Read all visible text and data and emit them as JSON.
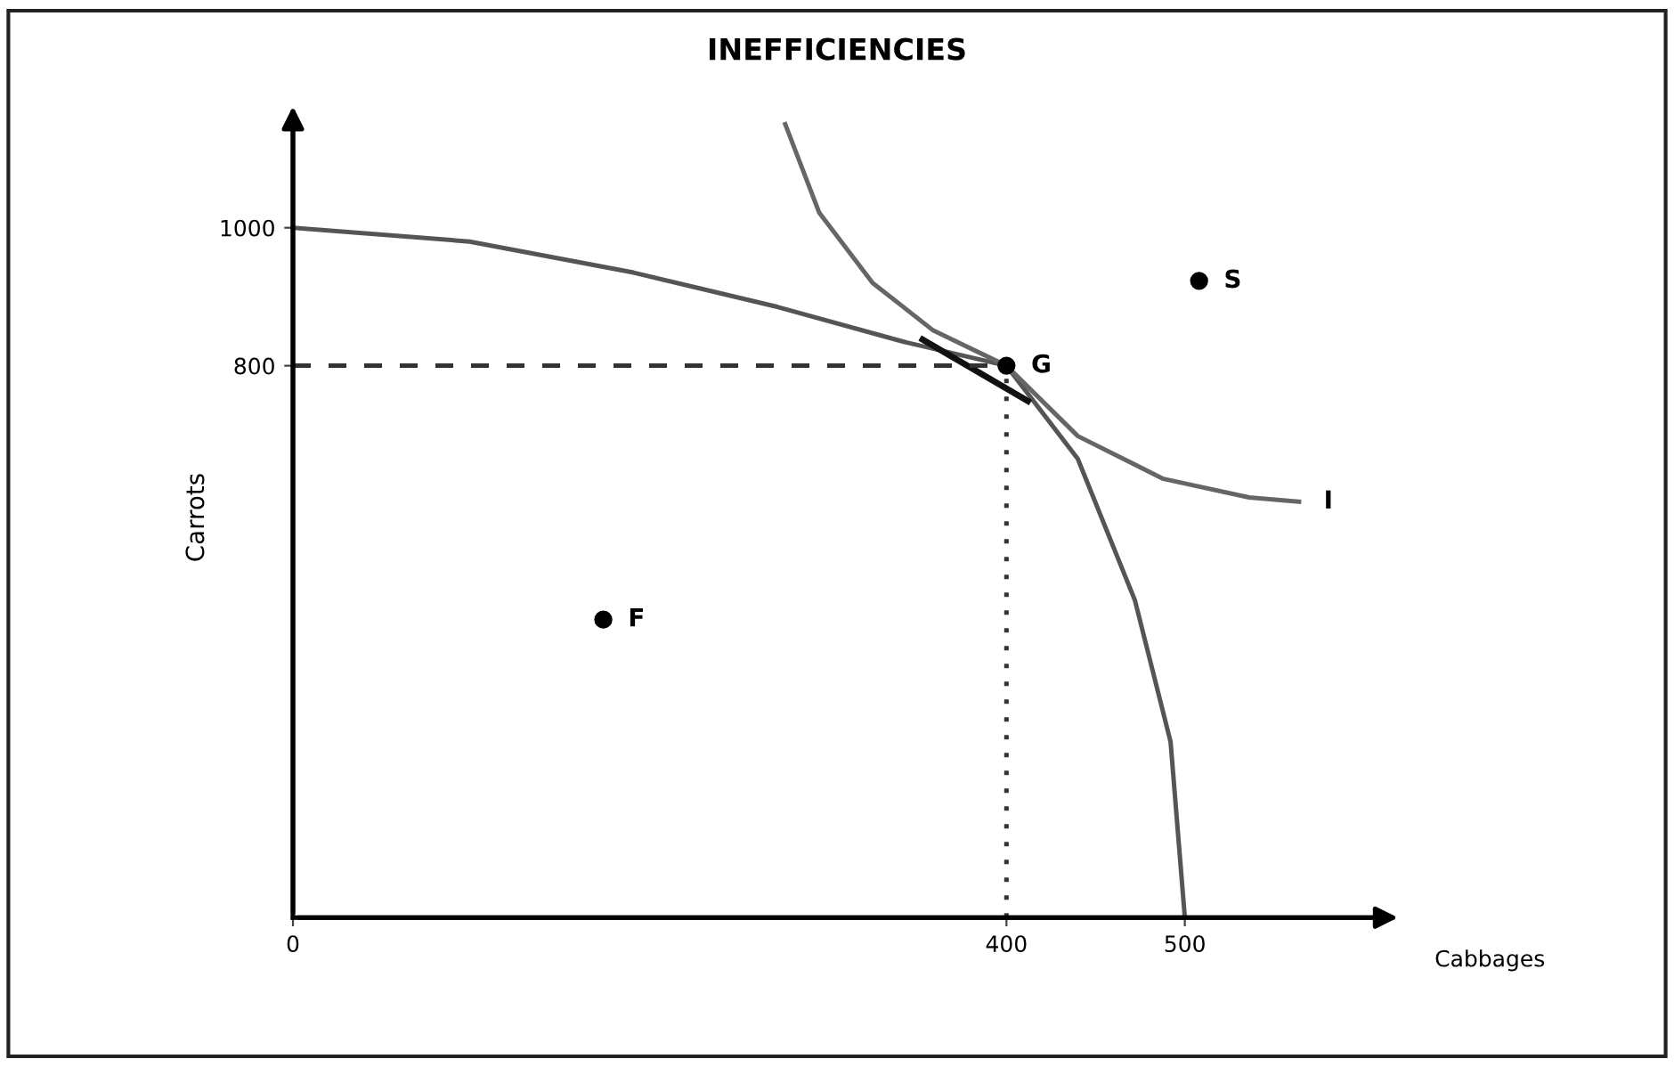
{
  "chart_data": {
    "type": "line",
    "title": "INEFFICIENCIES",
    "xlabel": "Cabbages",
    "ylabel": "Carrots",
    "xlim": [
      0,
      610
    ],
    "ylim": [
      0,
      1160
    ],
    "xticks": [
      0,
      400,
      500
    ],
    "yticks": [
      800,
      1000
    ],
    "grid": false,
    "legend": false,
    "series": [
      {
        "color": "#555555",
        "x": [
          0,
          99,
          191,
          272,
          342,
          400,
          440,
          472,
          492,
          500
        ],
        "values": [
          1000,
          980,
          935,
          885,
          835,
          800,
          665,
          460,
          255,
          0
        ]
      },
      {
        "color": "#666666",
        "x": [
          276,
          295,
          325,
          359,
          400,
          440,
          488,
          536,
          564
        ],
        "values": [
          1150,
          1022,
          920,
          851,
          800,
          698,
          636,
          609,
          603
        ]
      },
      {
        "color": "#111111",
        "x": [
          353,
          412
        ],
        "values": [
          838,
          749
        ]
      },
      {
        "color": "#333333",
        "line_style": "dashed",
        "x": [
          0,
          400
        ],
        "values": [
          800,
          800
        ]
      },
      {
        "color": "#333333",
        "line_style": "dotted",
        "x": [
          400,
          400
        ],
        "values": [
          0,
          800
        ]
      },
      {
        "type": "scatter",
        "color": "#000000",
        "marker": "circle",
        "x": [
          174,
          400,
          508
        ],
        "values": [
          432,
          800,
          923
        ]
      }
    ],
    "annotations": [
      {
        "text": "F",
        "x": 174,
        "y": 432
      },
      {
        "text": "G",
        "x": 400,
        "y": 800
      },
      {
        "text": "S",
        "x": 508,
        "y": 923
      },
      {
        "text": "I",
        "x": 564,
        "y": 603
      }
    ]
  }
}
